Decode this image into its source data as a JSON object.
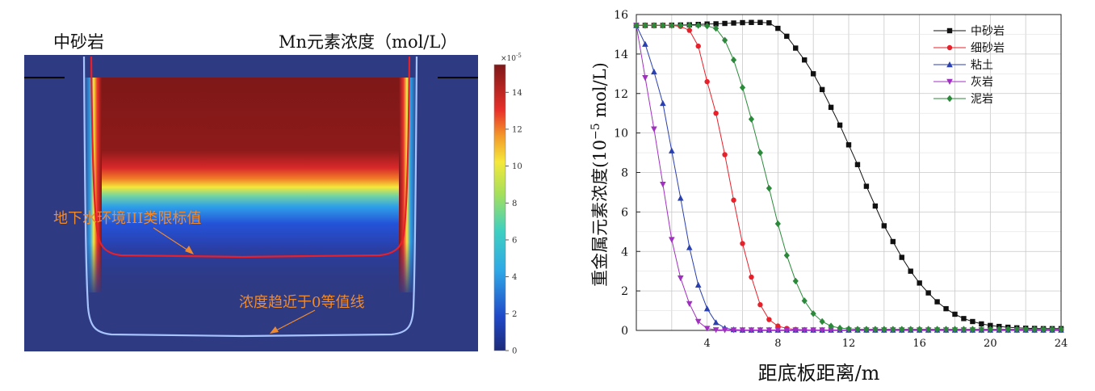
{
  "left_panel": {
    "rock_label": "中砂岩",
    "title": "Mn元素浓度（mol/L）",
    "colorbar_exponent": "×10",
    "colorbar_exponent_power": "-5",
    "colorbar_ticks": [
      0,
      2,
      4,
      6,
      8,
      10,
      12,
      14
    ],
    "colorbar_range": [
      0,
      15.5
    ],
    "contour_label_limit": "地下水环境III类限标值",
    "contour_label_zero": "浓度趋近于0等值线",
    "colors": {
      "background": "#2e3a82",
      "contour_limit": "#e8202a",
      "contour_zero": "#a8c4ff",
      "annotation": "#f08a2e"
    }
  },
  "chart_data": {
    "type": "line",
    "xlabel": "距底板距离/m",
    "ylabel": "重金属元素浓度(10",
    "ylabel_exp": "−5",
    "ylabel_unit": " mol/L)",
    "xlim": [
      0,
      24
    ],
    "ylim": [
      0,
      16
    ],
    "xticks": [
      4,
      8,
      12,
      16,
      20,
      24
    ],
    "yticks": [
      0,
      2,
      4,
      6,
      8,
      10,
      12,
      14,
      16
    ],
    "grid": true,
    "legend_position": "top-right",
    "series": [
      {
        "name": "中砂岩",
        "color": "#111111",
        "marker": "square",
        "x": [
          0,
          0.5,
          1,
          1.5,
          2,
          2.5,
          3,
          3.5,
          4,
          4.5,
          5,
          5.5,
          6,
          6.5,
          7,
          7.5,
          8,
          8.5,
          9,
          9.5,
          10,
          10.5,
          11,
          11.5,
          12,
          12.5,
          13,
          13.5,
          14,
          14.5,
          15,
          15.5,
          16,
          16.5,
          17,
          17.5,
          18,
          18.5,
          19,
          19.5,
          20,
          20.5,
          21,
          21.5,
          22,
          22.5,
          23,
          23.5,
          24
        ],
        "y": [
          15.45,
          15.45,
          15.45,
          15.45,
          15.46,
          15.47,
          15.48,
          15.5,
          15.52,
          15.53,
          15.55,
          15.57,
          15.59,
          15.6,
          15.6,
          15.58,
          15.3,
          14.9,
          14.3,
          13.7,
          13.0,
          12.2,
          11.3,
          10.4,
          9.4,
          8.4,
          7.3,
          6.3,
          5.3,
          4.5,
          3.7,
          3.0,
          2.4,
          1.9,
          1.45,
          1.1,
          0.82,
          0.6,
          0.45,
          0.33,
          0.25,
          0.2,
          0.16,
          0.13,
          0.11,
          0.1,
          0.09,
          0.09,
          0.09
        ]
      },
      {
        "name": "细砂岩",
        "color": "#e8202a",
        "marker": "circle",
        "x": [
          0,
          0.5,
          1,
          1.5,
          2,
          2.5,
          3,
          3.5,
          4,
          4.5,
          5,
          5.5,
          6,
          6.5,
          7,
          7.5,
          8,
          8.5,
          9,
          9.5,
          10,
          10.5,
          11,
          11.5,
          12,
          12.5,
          13,
          13.5,
          14,
          14.5,
          15,
          15.5,
          16,
          16.5,
          17,
          17.5,
          18,
          18.5,
          19,
          19.5,
          20,
          20.5,
          21,
          21.5,
          22,
          22.5,
          23,
          23.5,
          24
        ],
        "y": [
          15.45,
          15.45,
          15.45,
          15.45,
          15.45,
          15.4,
          15.2,
          14.4,
          12.6,
          11.0,
          8.9,
          6.6,
          4.4,
          2.7,
          1.3,
          0.55,
          0.22,
          0.1,
          0.05,
          0.03,
          0.02,
          0.02,
          0.02,
          0.02,
          0.02,
          0.02,
          0.02,
          0.02,
          0.02,
          0.02,
          0.02,
          0.02,
          0.02,
          0.02,
          0.02,
          0.02,
          0.02,
          0.02,
          0.02,
          0.02,
          0.02,
          0.02,
          0.02,
          0.02,
          0.02,
          0.02,
          0.02,
          0.02,
          0.02
        ]
      },
      {
        "name": "粘土",
        "color": "#2a3fb0",
        "marker": "triangle-up",
        "x": [
          0,
          0.5,
          1,
          1.5,
          2,
          2.5,
          3,
          3.5,
          4,
          4.5,
          5,
          5.5,
          6,
          6.5,
          7,
          7.5,
          8,
          8.5,
          9,
          9.5,
          10,
          10.5,
          11,
          11.5,
          12,
          12.5,
          13,
          13.5,
          14,
          14.5,
          15,
          15.5,
          16,
          16.5,
          17,
          17.5,
          18,
          18.5,
          19,
          19.5,
          20,
          20.5,
          21,
          21.5,
          22,
          22.5,
          23,
          23.5,
          24
        ],
        "y": [
          15.45,
          14.5,
          13.1,
          11.5,
          9.1,
          6.7,
          4.2,
          2.3,
          1.1,
          0.4,
          0.12,
          0.04,
          0.02,
          0.02,
          0.02,
          0.02,
          0.02,
          0.02,
          0.02,
          0.02,
          0.02,
          0.02,
          0.02,
          0.02,
          0.02,
          0.02,
          0.02,
          0.02,
          0.02,
          0.02,
          0.02,
          0.02,
          0.02,
          0.02,
          0.02,
          0.02,
          0.02,
          0.02,
          0.02,
          0.02,
          0.02,
          0.02,
          0.02,
          0.02,
          0.02,
          0.02,
          0.02,
          0.02,
          0.02
        ]
      },
      {
        "name": "灰岩",
        "color": "#a030c0",
        "marker": "triangle-down",
        "x": [
          0,
          0.5,
          1,
          1.5,
          2,
          2.5,
          3,
          3.5,
          4,
          4.5,
          5,
          5.5,
          6,
          6.5,
          7,
          7.5,
          8,
          8.5,
          9,
          9.5,
          10,
          10.5,
          11,
          11.5,
          12,
          12.5,
          13,
          13.5,
          14,
          14.5,
          15,
          15.5,
          16,
          16.5,
          17,
          17.5,
          18,
          18.5,
          19,
          19.5,
          20,
          20.5,
          21,
          21.5,
          22,
          22.5,
          23,
          23.5,
          24
        ],
        "y": [
          15.45,
          12.8,
          10.2,
          7.4,
          4.6,
          2.65,
          1.35,
          0.45,
          0.1,
          0.03,
          0.02,
          0.02,
          0.02,
          0.02,
          0.02,
          0.02,
          0.02,
          0.02,
          0.02,
          0.02,
          0.02,
          0.02,
          0.02,
          0.02,
          0.02,
          0.02,
          0.02,
          0.02,
          0.02,
          0.02,
          0.02,
          0.02,
          0.02,
          0.02,
          0.02,
          0.02,
          0.02,
          0.02,
          0.02,
          0.02,
          0.02,
          0.02,
          0.02,
          0.02,
          0.02,
          0.02,
          0.02,
          0.02,
          0.02
        ]
      },
      {
        "name": "泥岩",
        "color": "#2b8a3a",
        "marker": "diamond",
        "x": [
          0,
          0.5,
          1,
          1.5,
          2,
          2.5,
          3,
          3.5,
          4,
          4.5,
          5,
          5.5,
          6,
          6.5,
          7,
          7.5,
          8,
          8.5,
          9,
          9.5,
          10,
          10.5,
          11,
          11.5,
          12,
          12.5,
          13,
          13.5,
          14,
          14.5,
          15,
          15.5,
          16,
          16.5,
          17,
          17.5,
          18,
          18.5,
          19,
          19.5,
          20,
          20.5,
          21,
          21.5,
          22,
          22.5,
          23,
          23.5,
          24
        ],
        "y": [
          15.45,
          15.45,
          15.45,
          15.45,
          15.45,
          15.45,
          15.45,
          15.45,
          15.42,
          15.3,
          14.7,
          13.7,
          12.3,
          10.7,
          9.0,
          7.2,
          5.4,
          3.8,
          2.5,
          1.5,
          0.85,
          0.45,
          0.22,
          0.12,
          0.08,
          0.06,
          0.06,
          0.06,
          0.06,
          0.06,
          0.06,
          0.06,
          0.06,
          0.06,
          0.06,
          0.06,
          0.06,
          0.06,
          0.06,
          0.06,
          0.06,
          0.06,
          0.06,
          0.06,
          0.06,
          0.06,
          0.06,
          0.06,
          0.06
        ]
      }
    ]
  }
}
